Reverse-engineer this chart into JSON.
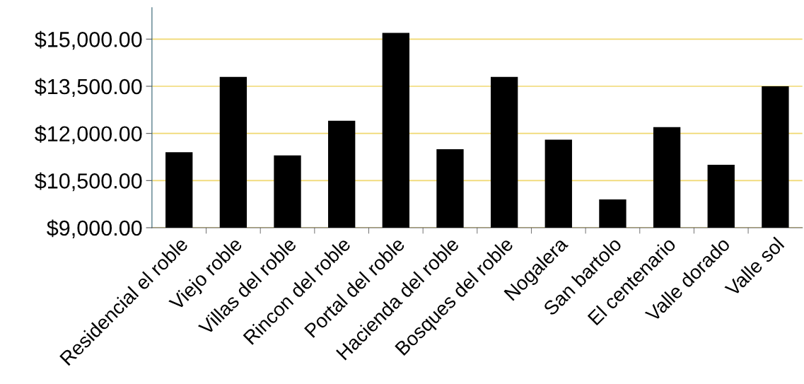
{
  "chart_data": {
    "type": "bar",
    "categories": [
      "Residencial el roble",
      "Viejo roble",
      "Villas del roble",
      "Rincon del roble",
      "Portal del roble",
      "Hacienda del roble",
      "Bosques del roble",
      "Nogalera",
      "San bartolo",
      "El centenario",
      "Valle dorado",
      "Valle sol"
    ],
    "values": [
      11400,
      13800,
      11300,
      12400,
      15200,
      11500,
      13800,
      11800,
      9900,
      12200,
      11000,
      13500
    ],
    "color": "#000000",
    "ylim": [
      9000,
      16000
    ],
    "yticks": [
      {
        "value": 9000,
        "label": "$9,000.00"
      },
      {
        "value": 10500,
        "label": "$10,500.00"
      },
      {
        "value": 12000,
        "label": "$12,000.00"
      },
      {
        "value": 13500,
        "label": "$13,500.00"
      },
      {
        "value": 15000,
        "label": "$15,000.00"
      }
    ],
    "grid": "y"
  }
}
